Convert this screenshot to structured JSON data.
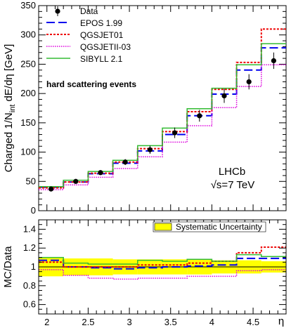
{
  "chart_data": [
    {
      "type": "line",
      "panel": "main",
      "ylabel_main": "Charged 1/N",
      "ylabel_sub": "int",
      "ylabel_tail": " dE/dη [GeV]",
      "xlim": [
        1.9,
        4.9
      ],
      "ylim": [
        0,
        350
      ],
      "yticks": [
        0,
        50,
        100,
        150,
        200,
        250,
        300,
        350
      ],
      "bin_edges": [
        1.9,
        2.2,
        2.5,
        2.8,
        3.1,
        3.4,
        3.7,
        4.0,
        4.3,
        4.6,
        4.9
      ],
      "annotation": "hard scattering events",
      "experiment": "LHCb",
      "energy": "√s=7 TeV",
      "data": {
        "name": "Data",
        "x": [
          2.05,
          2.35,
          2.65,
          2.95,
          3.25,
          3.55,
          3.85,
          4.15,
          4.45,
          4.75
        ],
        "y": [
          37,
          50,
          65,
          83,
          104,
          133,
          162,
          196,
          220,
          256
        ],
        "err": [
          3,
          3,
          4,
          5,
          7,
          9,
          10,
          12,
          13,
          14
        ]
      },
      "series": [
        {
          "name": "EPOS 1.99",
          "color": "#0000ee",
          "style": "longdash",
          "values": [
            40,
            49,
            63,
            81,
            102,
            130,
            162,
            199,
            240,
            278
          ]
        },
        {
          "name": "QGSJET01",
          "color": "#ee0000",
          "style": "dotted",
          "values": [
            39,
            49,
            64,
            83,
            106,
            135,
            169,
            207,
            253,
            310
          ]
        },
        {
          "name": "QGSJETII-03",
          "color": "#dd00dd",
          "style": "finedot",
          "values": [
            36,
            44,
            57,
            72,
            92,
            117,
            145,
            176,
            212,
            249
          ]
        },
        {
          "name": "SIBYLL 2.1",
          "color": "#33bb33",
          "style": "solid",
          "values": [
            41,
            52,
            67,
            86,
            111,
            141,
            174,
            209,
            249,
            285
          ]
        }
      ]
    },
    {
      "type": "line",
      "panel": "ratio",
      "ylabel": "MC/Data",
      "xlabel": "η",
      "xlim": [
        1.9,
        4.9
      ],
      "ylim": [
        0.5,
        1.5
      ],
      "yticks": [
        0.6,
        0.8,
        1,
        1.2,
        1.4
      ],
      "xticks": [
        2,
        2.5,
        3,
        3.5,
        4,
        4.5
      ],
      "band_label": "Systematic Uncertainty",
      "band_color": "#ffff00",
      "band": {
        "lo": [
          0.9,
          0.91,
          0.91,
          0.92,
          0.92,
          0.92,
          0.92,
          0.93,
          0.93,
          0.94
        ],
        "hi": [
          1.1,
          1.09,
          1.09,
          1.08,
          1.08,
          1.08,
          1.08,
          1.07,
          1.07,
          1.06
        ]
      },
      "series": [
        {
          "name": "EPOS 1.99",
          "values": [
            1.07,
            1.0,
            0.99,
            0.98,
            0.99,
            1.0,
            1.01,
            1.02,
            1.09,
            1.09
          ]
        },
        {
          "name": "QGSJET01",
          "values": [
            1.05,
            1.0,
            1.0,
            1.0,
            1.02,
            1.02,
            1.04,
            1.06,
            1.15,
            1.21
          ]
        },
        {
          "name": "QGSJETII-03",
          "values": [
            0.97,
            0.91,
            0.88,
            0.87,
            0.88,
            0.88,
            0.9,
            0.9,
            0.96,
            0.97
          ]
        },
        {
          "name": "SIBYLL 2.1",
          "values": [
            1.1,
            1.04,
            1.03,
            1.03,
            1.07,
            1.06,
            1.08,
            1.06,
            1.13,
            1.11
          ]
        }
      ]
    }
  ]
}
